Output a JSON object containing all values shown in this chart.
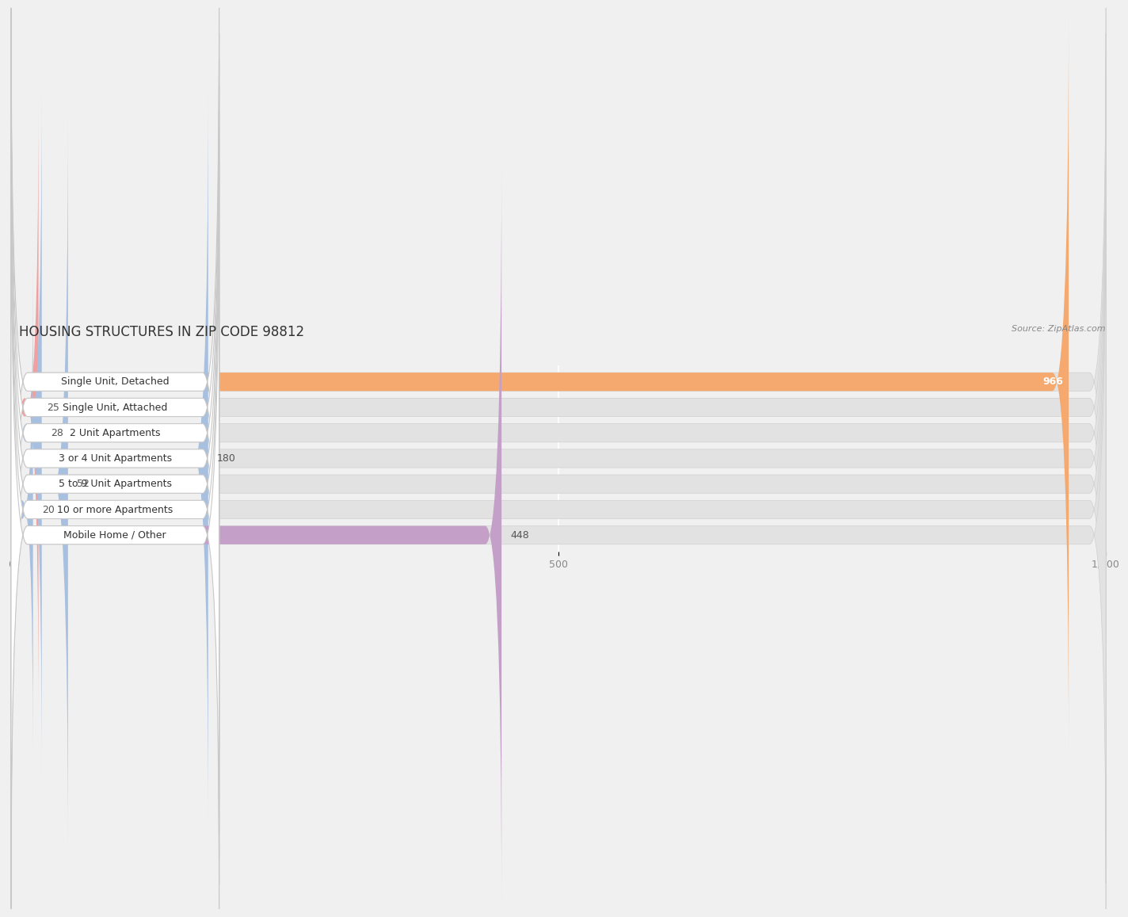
{
  "title": "HOUSING STRUCTURES IN ZIP CODE 98812",
  "source": "Source: ZipAtlas.com",
  "categories": [
    "Single Unit, Detached",
    "Single Unit, Attached",
    "2 Unit Apartments",
    "3 or 4 Unit Apartments",
    "5 to 9 Unit Apartments",
    "10 or more Apartments",
    "Mobile Home / Other"
  ],
  "values": [
    966,
    25,
    28,
    180,
    52,
    20,
    448
  ],
  "colors": [
    "#F5A96E",
    "#F0A0A0",
    "#A8C0E0",
    "#A8C0E0",
    "#A8C0E0",
    "#A8C0E0",
    "#C4A0C8"
  ],
  "xlim": [
    0,
    1000
  ],
  "xticks": [
    0,
    500,
    1000
  ],
  "xtick_labels": [
    "0",
    "500",
    "1,000"
  ],
  "background_color": "#f0f0f0",
  "bar_bg_color": "#e2e2e2",
  "label_bg_color": "#ffffff",
  "title_fontsize": 12,
  "label_fontsize": 9,
  "value_fontsize": 9
}
